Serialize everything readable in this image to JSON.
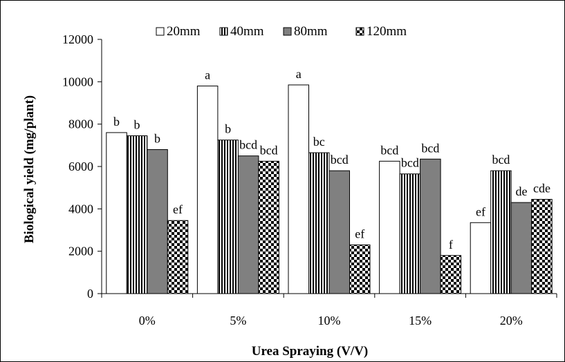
{
  "chart_data": {
    "type": "bar",
    "categories": [
      "0%",
      "5%",
      "10%",
      "15%",
      "20%"
    ],
    "series": [
      {
        "name": "20mm",
        "values": [
          7600,
          9800,
          9850,
          6250,
          3350
        ],
        "labels": [
          "b",
          "a",
          "a",
          "bcd",
          "ef"
        ]
      },
      {
        "name": "40mm",
        "values": [
          7450,
          7250,
          6650,
          5650,
          5800
        ],
        "labels": [
          "b",
          "b",
          "bc",
          "bcd",
          "bcd"
        ]
      },
      {
        "name": "80mm",
        "values": [
          6800,
          6500,
          5800,
          6350,
          4300
        ],
        "labels": [
          "b",
          "bcd",
          "bcd",
          "bcd",
          "de"
        ]
      },
      {
        "name": "120mm",
        "values": [
          3450,
          6250,
          2300,
          1800,
          4450
        ],
        "labels": [
          "ef",
          "bcd",
          "ef",
          "f",
          "cde"
        ]
      }
    ],
    "xlabel": "Urea Spraying (V/V)",
    "ylabel": "Biological yield (mg/plant)",
    "ylim": [
      0,
      12000
    ],
    "yticks": [
      "0",
      "2000",
      "4000",
      "6000",
      "8000",
      "10000",
      "12000"
    ],
    "legend_position": "top",
    "grid": false
  }
}
